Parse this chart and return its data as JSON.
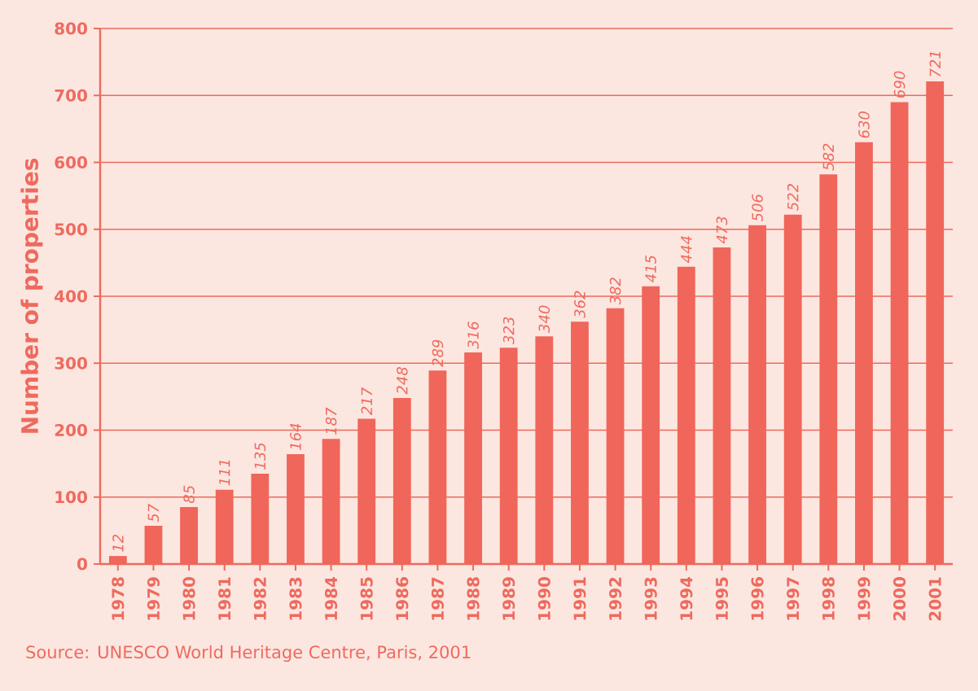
{
  "chart_data": {
    "type": "bar",
    "ylabel": "Number of properties",
    "categories": [
      "1978",
      "1979",
      "1980",
      "1981",
      "1982",
      "1983",
      "1984",
      "1985",
      "1986",
      "1987",
      "1988",
      "1989",
      "1990",
      "1991",
      "1992",
      "1993",
      "1994",
      "1995",
      "1996",
      "1997",
      "1998",
      "1999",
      "2000",
      "2001"
    ],
    "values": [
      12,
      57,
      85,
      111,
      135,
      164,
      187,
      217,
      248,
      289,
      316,
      323,
      340,
      362,
      382,
      415,
      444,
      473,
      506,
      522,
      582,
      630,
      690,
      721
    ],
    "color": "#f0665a",
    "ylim": [
      0,
      800
    ],
    "yticks": [
      0,
      100,
      200,
      300,
      400,
      500,
      600,
      700,
      800
    ],
    "grid": "y",
    "data_labels": true,
    "annotations": [
      "Source: UNESCO World Heritage Centre, Paris, 2001"
    ]
  }
}
